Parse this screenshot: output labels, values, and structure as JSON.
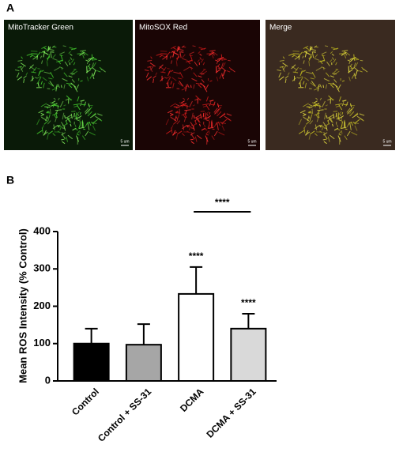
{
  "panel_labels": [
    "A",
    "B"
  ],
  "images": [
    {
      "label": "MitoTracker Green",
      "scale": "5 um"
    },
    {
      "label": "MitoSOX Red",
      "scale": "5 um"
    },
    {
      "label": "Merge",
      "scale": "5 um"
    }
  ],
  "chart_data": {
    "type": "bar",
    "y_label": "Mean ROS Intensity (% Control)",
    "categories": [
      "Control",
      "Control + SS-31",
      "DCMA",
      "DCMA + SS-31"
    ],
    "values": [
      100,
      97,
      233,
      140
    ],
    "errors": [
      40,
      55,
      72,
      40
    ],
    "colors": [
      "#000000",
      "#a6a6a6",
      "#ffffff",
      "#d9d9d9"
    ],
    "annotations": [
      "****",
      "****"
    ],
    "bracket_label": "****",
    "ylim": [
      0,
      400
    ],
    "yticks": [
      0,
      100,
      200,
      300,
      400
    ],
    "grid": false
  }
}
